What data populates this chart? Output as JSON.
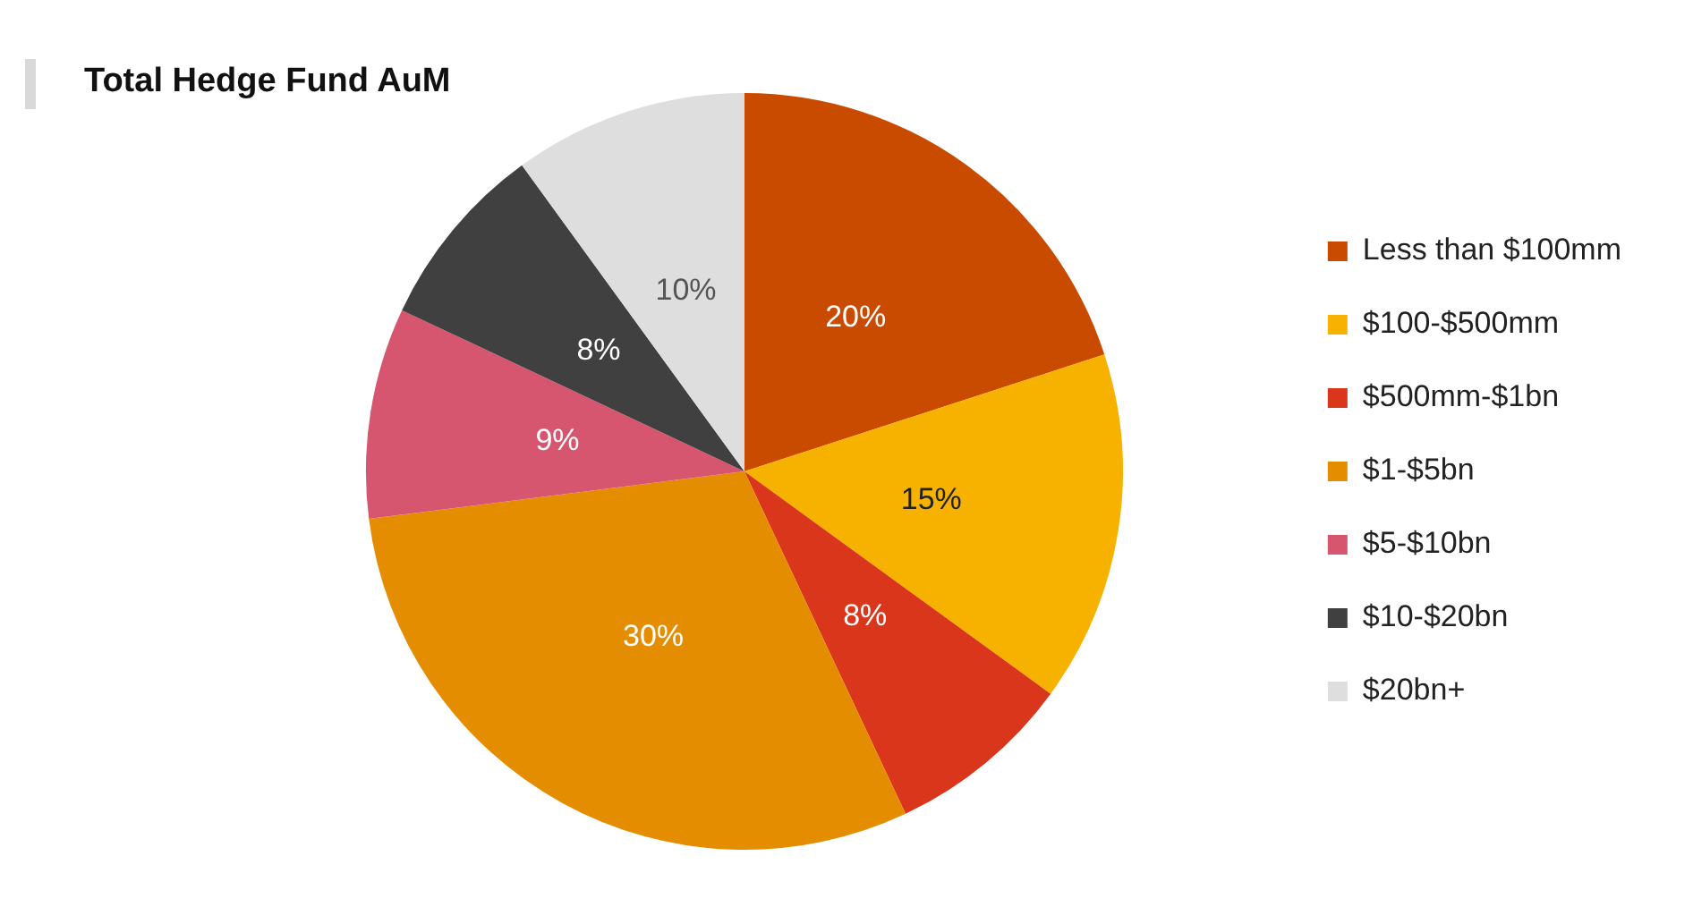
{
  "chart_data": {
    "type": "pie",
    "title": "Total Hedge Fund AuM",
    "categories": [
      "Less than $100mm",
      "$100-$500mm",
      "$500mm-$1bn",
      "$1-$5bn",
      "$5-$10bn",
      "$10-$20bn",
      "$20bn+"
    ],
    "values": [
      20,
      15,
      8,
      30,
      9,
      8,
      10
    ],
    "value_labels": [
      "20%",
      "15%",
      "8%",
      "30%",
      "9%",
      "8%",
      "10%"
    ],
    "colors": [
      "#c84b00",
      "#f7b200",
      "#d9361b",
      "#e58d00",
      "#d7566f",
      "#404040",
      "#dedede"
    ],
    "legend": "right"
  }
}
